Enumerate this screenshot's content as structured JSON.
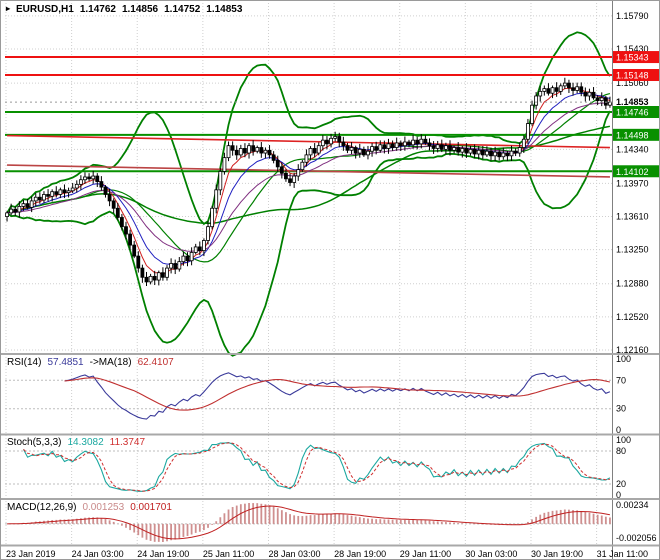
{
  "header": {
    "marker": "▸",
    "symbol": "EURUSD,H1",
    "open": "1.14762",
    "high": "1.14856",
    "low": "1.14752",
    "close": "1.14853"
  },
  "colors": {
    "grid": "#cfcfcf",
    "candle": "#000000",
    "band": "#008000",
    "level_red": "#ee1111",
    "level_green": "#089000",
    "ema_fast": "#d02020",
    "ema_mid": "#2020c0",
    "ema_slow": "#803080",
    "rsi": "#3a3a9a",
    "rsi_ma": "#c03030",
    "stoch": "#1ba8a0",
    "stoch_signal": "#d03030",
    "macd_hist": "#cf8f8f",
    "macd_signal": "#c02020",
    "axis_text": "#000000",
    "divider": "#a8a8a8"
  },
  "price_axis": {
    "labels": [
      "1.15790",
      "1.15430",
      "1.15060",
      "1.14340",
      "1.13970",
      "1.13610",
      "1.13250",
      "1.12880",
      "1.12520",
      "1.12160"
    ],
    "current": {
      "label": "1.14853",
      "value": 1.14853
    }
  },
  "levels": [
    {
      "label": "1.15343",
      "value": 1.15343,
      "color": "#ee1111"
    },
    {
      "label": "1.15148",
      "value": 1.15148,
      "color": "#ee1111"
    },
    {
      "label": "1.14746",
      "value": 1.14746,
      "color": "#089000"
    },
    {
      "label": "1.14498",
      "value": 1.14498,
      "color": "#089000"
    },
    {
      "label": "1.14102",
      "value": 1.14102,
      "color": "#089000"
    }
  ],
  "panels": {
    "rsi": {
      "name": "RSI(14)",
      "value": "57.4851",
      "ma_name": "->MA(18)",
      "ma_value": "62.4107",
      "levels": [
        100,
        70,
        30,
        0
      ]
    },
    "stoch": {
      "name": "Stoch(5,3,3)",
      "value": "14.3082",
      "signal_value": "11.3747",
      "levels": [
        100,
        80,
        20,
        0
      ]
    },
    "macd": {
      "name": "MACD(12,26,9)",
      "value": "0.001253",
      "signal_value": "0.001701",
      "axis_labels": [
        "0.00234",
        "-0.002056"
      ]
    }
  },
  "chart_data": {
    "type": "candlestick",
    "title": "EURUSD,H1",
    "x_labels": [
      "23 Jan 2019",
      "24 Jan 03:00",
      "24 Jan 19:00",
      "25 Jan 11:00",
      "28 Jan 03:00",
      "28 Jan 19:00",
      "29 Jan 11:00",
      "30 Jan 03:00",
      "30 Jan 19:00",
      "31 Jan 11:00"
    ],
    "bars_per_label": 16,
    "ylim": [
      1.1216,
      1.158
    ],
    "close": [
      1.1365,
      1.1369,
      1.1366,
      1.1372,
      1.1375,
      1.1371,
      1.1378,
      1.1382,
      1.1379,
      1.1385,
      1.1383,
      1.1388,
      1.1385,
      1.139,
      1.1387,
      1.1389,
      1.1392,
      1.1396,
      1.1401,
      1.1404,
      1.1402,
      1.1405,
      1.1399,
      1.1393,
      1.1385,
      1.1378,
      1.137,
      1.136,
      1.135,
      1.1342,
      1.133,
      1.1318,
      1.1305,
      1.1295,
      1.129,
      1.1296,
      1.1292,
      1.13,
      1.1295,
      1.1305,
      1.131,
      1.1304,
      1.1312,
      1.1318,
      1.1313,
      1.1322,
      1.1328,
      1.1324,
      1.1335,
      1.135,
      1.137,
      1.139,
      1.141,
      1.1425,
      1.1438,
      1.1433,
      1.1428,
      1.1435,
      1.143,
      1.1438,
      1.1432,
      1.1436,
      1.143,
      1.1433,
      1.1428,
      1.1422,
      1.1415,
      1.1408,
      1.1402,
      1.1398,
      1.1405,
      1.1412,
      1.142,
      1.1428,
      1.1435,
      1.143,
      1.1438,
      1.1444,
      1.144,
      1.1446,
      1.1448,
      1.1442,
      1.1438,
      1.1433,
      1.1436,
      1.143,
      1.1434,
      1.1428,
      1.1432,
      1.1437,
      1.1433,
      1.1439,
      1.1435,
      1.144,
      1.1436,
      1.1441,
      1.1438,
      1.1442,
      1.1439,
      1.1444,
      1.144,
      1.1445,
      1.1441,
      1.1438,
      1.1435,
      1.1439,
      1.1434,
      1.1438,
      1.1433,
      1.1436,
      1.1431,
      1.1435,
      1.143,
      1.1434,
      1.1429,
      1.1433,
      1.1428,
      1.1432,
      1.1427,
      1.1431,
      1.1426,
      1.143,
      1.1427,
      1.1432,
      1.143,
      1.1436,
      1.1445,
      1.1462,
      1.1482,
      1.1492,
      1.1497,
      1.15,
      1.1495,
      1.1501,
      1.1497,
      1.1503,
      1.1506,
      1.1501,
      1.1498,
      1.1502,
      1.1496,
      1.1492,
      1.1496,
      1.149,
      1.1487,
      1.149,
      1.1482,
      1.14853
    ],
    "trendlines": [
      {
        "x1": 0,
        "p1": 1.1449,
        "x2": 147,
        "p2": 1.1436,
        "color": "#dd2222"
      },
      {
        "x1": 0,
        "p1": 1.1417,
        "x2": 147,
        "p2": 1.1404,
        "color": "#bb4444"
      }
    ]
  }
}
